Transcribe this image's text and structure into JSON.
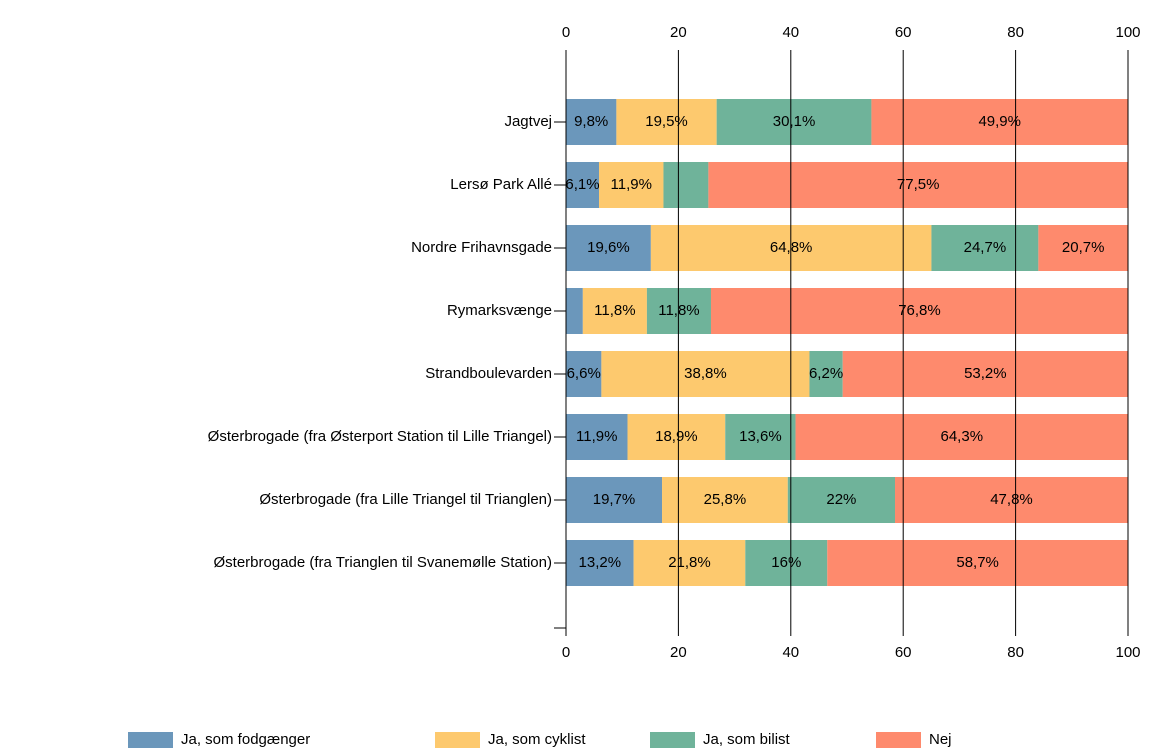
{
  "chart_data": {
    "type": "stacked-bar-horizontal",
    "stacking": "percent",
    "categories": [
      "Jagtvej",
      "Lersø Park Allé",
      "Nordre Frihavnsgade",
      "Rymarksvænge",
      "Strandboulevarden",
      "Østerbrogade (fra Østerport Station til Lille Triangel)",
      "Østerbrogade (fra Lille Triangel til Trianglen)",
      "Østerbrogade (fra Trianglen til Svanemølle Station)"
    ],
    "series": [
      {
        "name": "Ja, som fodgænger",
        "color": "#6b97bb",
        "values": [
          9.8,
          6.1,
          19.6,
          3.1,
          6.6,
          11.9,
          19.7,
          13.2
        ],
        "value_labels": [
          "9,8%",
          "6,1%",
          "19,6%",
          null,
          "6,6%",
          "11,9%",
          "19,7%",
          "13,2%"
        ]
      },
      {
        "name": "Ja, som cyklist",
        "color": "#fdc96e",
        "values": [
          19.5,
          11.9,
          64.8,
          11.8,
          38.8,
          18.9,
          25.8,
          21.8
        ],
        "value_labels": [
          "19,5%",
          "11,9%",
          "64,8%",
          "11,8%",
          "38,8%",
          "18,9%",
          "25,8%",
          "21,8%"
        ]
      },
      {
        "name": "Ja, som bilist",
        "color": "#6fb39a",
        "values": [
          30.1,
          8.3,
          24.7,
          11.8,
          6.2,
          13.6,
          22,
          16
        ],
        "value_labels": [
          "30,1%",
          null,
          "24,7%",
          "11,8%",
          "6,2%",
          "13,6%",
          "22%",
          "16%"
        ]
      },
      {
        "name": "Nej",
        "color": "#fe8a6d",
        "values": [
          49.9,
          77.5,
          20.7,
          76.8,
          53.2,
          64.3,
          47.8,
          58.7
        ],
        "value_labels": [
          "49,9%",
          "77,5%",
          "20,7%",
          "76,8%",
          "53,2%",
          "64,3%",
          "47,8%",
          "58,7%"
        ]
      }
    ],
    "xlim": [
      0,
      100
    ],
    "xticks": [
      0,
      20,
      40,
      60,
      80,
      100
    ],
    "grid": true,
    "legend": "bottom"
  }
}
